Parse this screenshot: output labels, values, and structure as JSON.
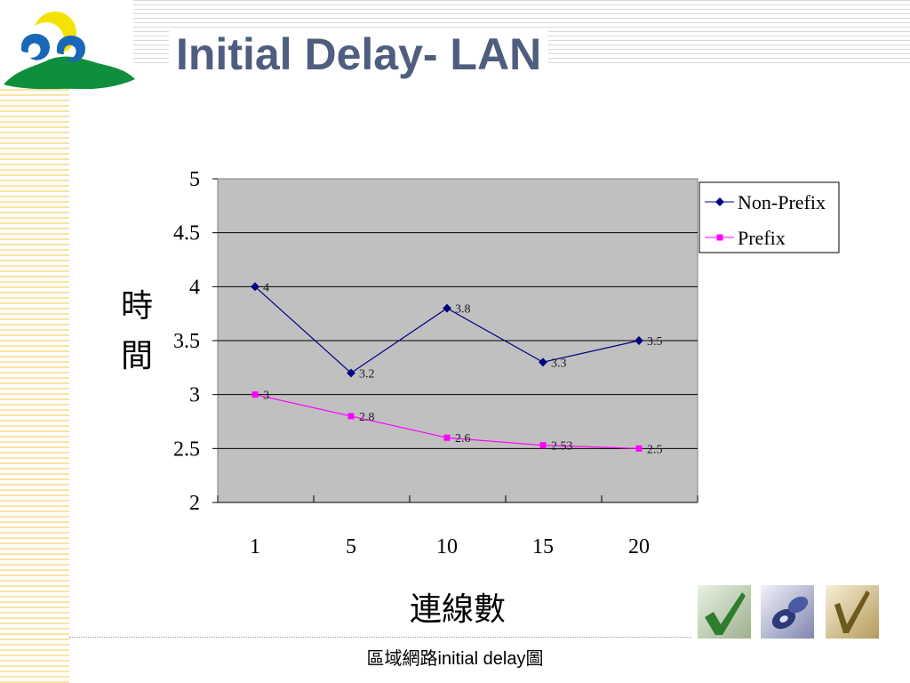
{
  "slide": {
    "title": "Initial Delay- LAN",
    "caption": "區域網路initial delay圖"
  },
  "theme": {
    "title_color": "#4f5d7e",
    "plot_bg": "#c0c0c0",
    "non_prefix_color": "#000080",
    "prefix_color": "#ff00ff"
  },
  "decor": {
    "logo_icon": "yellow-moon-blue-swirl-green-land-logo",
    "thumbs": [
      "green-checkmark-icon",
      "blue-cd-disc-icon",
      "gold-checkmark-icon"
    ]
  },
  "chart_data": {
    "type": "line",
    "categories": [
      "1",
      "5",
      "10",
      "15",
      "20"
    ],
    "series": [
      {
        "name": "Non-Prefix",
        "values": [
          4,
          3.2,
          3.8,
          3.3,
          3.5
        ],
        "labels": [
          "4",
          "3.2",
          "3.8",
          "3.3",
          "3.5"
        ]
      },
      {
        "name": "Prefix",
        "values": [
          3,
          2.8,
          2.6,
          2.53,
          2.5
        ],
        "labels": [
          "3",
          "2.8",
          "2.6",
          "2.53",
          "2.5"
        ]
      }
    ],
    "ylim": [
      2,
      5
    ],
    "yticks": [
      "2",
      "2.5",
      "3",
      "3.5",
      "4",
      "4.5",
      "5"
    ],
    "xlabel": "連線數",
    "ylabel": "時間",
    "grid": true,
    "legend": "right"
  }
}
